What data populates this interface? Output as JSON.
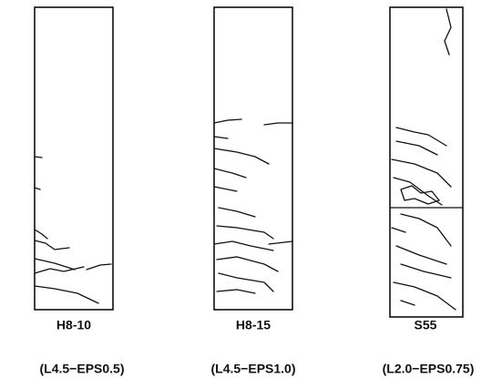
{
  "panels": [
    {
      "label": "H8-10",
      "sublabel": "(L4.5−EPS0.5)"
    },
    {
      "label": "H8-15",
      "sublabel": "(L4.5−EPS1.0)"
    },
    {
      "label": "S55",
      "sublabel": "(L2.0−EPS0.75)"
    }
  ]
}
